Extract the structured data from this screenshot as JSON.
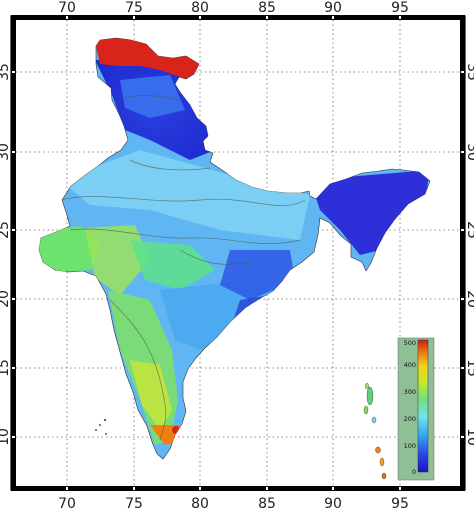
{
  "map": {
    "axes": {
      "longitude_ticks": [
        "70",
        "75",
        "80",
        "85",
        "90",
        "95"
      ],
      "latitude_ticks": [
        "10",
        "15",
        "20",
        "25",
        "30",
        "35"
      ]
    },
    "colorbar": {
      "ticks": [
        "0",
        "100",
        "200",
        "300",
        "400",
        "500"
      ],
      "range": [
        0,
        500
      ],
      "colors": [
        "#2a2ad8",
        "#2f7cf0",
        "#6fd6ee",
        "#49e082",
        "#b8ea2e",
        "#f2d21a",
        "#f07f10",
        "#d22613"
      ]
    },
    "colors": {
      "low": "#2a2ad8",
      "mid_low": "#2f7cf0",
      "mid": "#6fd6ee",
      "mid_high": "#49e082",
      "high": "#b8ea2e",
      "very_high": "#d22613",
      "frame": "#000000",
      "grid": "#777777",
      "colorbar_bg": "#8fbf95"
    }
  }
}
